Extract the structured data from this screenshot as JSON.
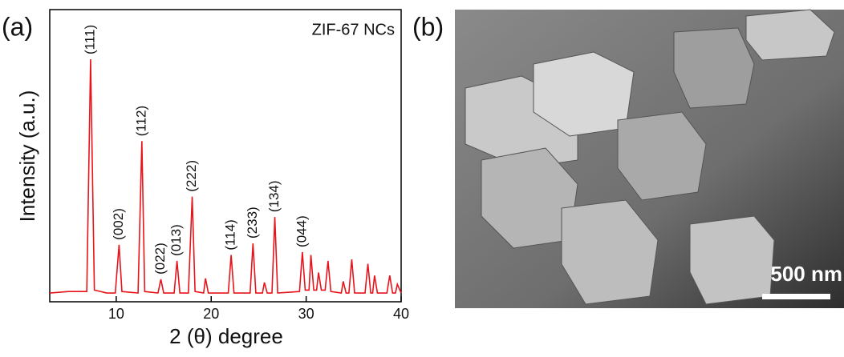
{
  "chart_data": {
    "type": "line",
    "panel_label": "(a)",
    "x_label": "2 (θ) degree",
    "y_label": "Intensity (a.u.)",
    "xlim": [
      3,
      40
    ],
    "xticks": [
      10,
      20,
      30,
      40
    ],
    "ylim": [
      0,
      100
    ],
    "series": [
      {
        "name": "ZIF-67 NCs",
        "color": "#e8141b",
        "x": [
          3,
          5,
          6.9,
          7.3,
          7.7,
          9,
          9.9,
          10.3,
          10.6,
          12.3,
          12.7,
          13.0,
          14.4,
          14.7,
          15.0,
          16.1,
          16.4,
          16.7,
          17.6,
          18.0,
          18.3,
          19.2,
          19.4,
          19.7,
          21.8,
          22.1,
          22.4,
          24.1,
          24.4,
          24.7,
          25.4,
          25.6,
          25.9,
          26.4,
          26.7,
          27.0,
          29.3,
          29.6,
          29.9,
          30.3,
          30.5,
          30.8,
          31.1,
          31.3,
          31.6,
          32.0,
          32.3,
          32.6,
          33.7,
          33.9,
          34.2,
          34.5,
          34.8,
          35.1,
          36.2,
          36.5,
          36.8,
          37.0,
          37.2,
          37.5,
          38.5,
          38.8,
          39.1,
          39.4,
          39.6,
          40
        ],
        "values": [
          3,
          3.5,
          3.5,
          83,
          4,
          3,
          3,
          19.5,
          3.5,
          3,
          55,
          3.5,
          3,
          7.7,
          3,
          3,
          14,
          3,
          3,
          36,
          3.5,
          3,
          8,
          3,
          3,
          16,
          3,
          3,
          20,
          3,
          3,
          6.6,
          3,
          3,
          29,
          3,
          3.5,
          17,
          4,
          4,
          16,
          4,
          4,
          10,
          4,
          4,
          14,
          3.5,
          3,
          7,
          3,
          3,
          14.5,
          3,
          3,
          13,
          3,
          3,
          9,
          3,
          3,
          9,
          3,
          3,
          6,
          3
        ]
      }
    ],
    "annotations": [
      {
        "text": "(111)",
        "x": 7.3
      },
      {
        "text": "(002)",
        "x": 10.3
      },
      {
        "text": "(112)",
        "x": 12.7
      },
      {
        "text": "(022)",
        "x": 14.7
      },
      {
        "text": "(013)",
        "x": 16.4
      },
      {
        "text": "(222)",
        "x": 18.0
      },
      {
        "text": "(114)",
        "x": 22.1
      },
      {
        "text": "(233)",
        "x": 24.4
      },
      {
        "text": "(134)",
        "x": 26.7
      },
      {
        "text": "(044)",
        "x": 29.6
      }
    ]
  },
  "image_panel": {
    "panel_label": "(b)",
    "scale_bar": "500 nm"
  }
}
